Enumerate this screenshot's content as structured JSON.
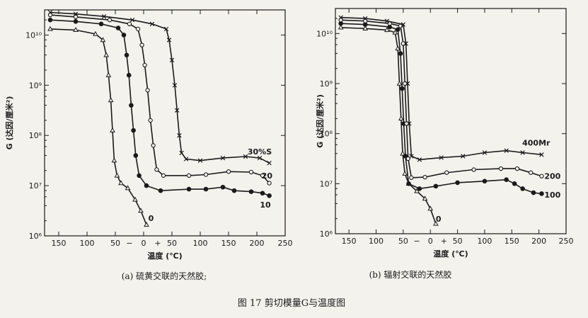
{
  "figure_caption": "图 17   剪切模量G与温度图",
  "chart_data": [
    {
      "type": "line",
      "caption": "(a)  硫黄交联的天然胶;",
      "xlabel": "温度 (℃)",
      "ylabel": "G (达因/厘米²)",
      "y_scale": "log",
      "xlim": [
        -175,
        250
      ],
      "ylim": [
        6,
        10.5
      ],
      "x_ticks": [
        {
          "v": -150,
          "label": "150"
        },
        {
          "v": -100,
          "label": "100"
        },
        {
          "v": -50,
          "label": "50"
        },
        {
          "v": 0,
          "label": "0"
        },
        {
          "v": 50,
          "label": "50"
        },
        {
          "v": 100,
          "label": "100"
        },
        {
          "v": 150,
          "label": "150"
        },
        {
          "v": 200,
          "label": "200"
        },
        {
          "v": 250,
          "label": "250"
        }
      ],
      "x_sign_labels": [
        {
          "v": -25,
          "label": "−"
        },
        {
          "v": 25,
          "label": "+"
        }
      ],
      "y_ticks": [
        {
          "v": 10,
          "label": "10¹⁰"
        },
        {
          "v": 9,
          "label": "10⁹"
        },
        {
          "v": 8,
          "label": "10⁸"
        },
        {
          "v": 7,
          "label": "10⁷"
        },
        {
          "v": 6,
          "label": "10⁶"
        }
      ],
      "series": [
        {
          "name": "0",
          "marker": "triangle",
          "points": [
            [
              -165,
              10.12
            ],
            [
              -120,
              10.1
            ],
            [
              -85,
              10.02
            ],
            [
              -72,
              9.9
            ],
            [
              -66,
              9.6
            ],
            [
              -62,
              9.2
            ],
            [
              -58,
              8.7
            ],
            [
              -55,
              8.1
            ],
            [
              -52,
              7.5
            ],
            [
              -47,
              7.2
            ],
            [
              -40,
              7.05
            ],
            [
              -28,
              6.95
            ],
            [
              -15,
              6.72
            ],
            [
              -5,
              6.5
            ],
            [
              5,
              6.22
            ]
          ]
        },
        {
          "name": "10",
          "marker": "filled-circle",
          "points": [
            [
              -165,
              10.3
            ],
            [
              -120,
              10.27
            ],
            [
              -75,
              10.22
            ],
            [
              -45,
              10.14
            ],
            [
              -35,
              10.0
            ],
            [
              -30,
              9.6
            ],
            [
              -26,
              9.2
            ],
            [
              -22,
              8.6
            ],
            [
              -18,
              8.1
            ],
            [
              -14,
              7.6
            ],
            [
              -8,
              7.2
            ],
            [
              5,
              7.0
            ],
            [
              30,
              6.9
            ],
            [
              80,
              6.93
            ],
            [
              110,
              6.93
            ],
            [
              140,
              6.97
            ],
            [
              160,
              6.9
            ],
            [
              190,
              6.88
            ],
            [
              210,
              6.85
            ],
            [
              222,
              6.8
            ]
          ]
        },
        {
          "name": "20",
          "marker": "open-circle",
          "points": [
            [
              -165,
              10.4
            ],
            [
              -120,
              10.36
            ],
            [
              -60,
              10.3
            ],
            [
              -25,
              10.22
            ],
            [
              -10,
              10.12
            ],
            [
              -3,
              9.8
            ],
            [
              2,
              9.4
            ],
            [
              7,
              8.9
            ],
            [
              12,
              8.3
            ],
            [
              17,
              7.8
            ],
            [
              23,
              7.32
            ],
            [
              35,
              7.2
            ],
            [
              80,
              7.2
            ],
            [
              110,
              7.22
            ],
            [
              150,
              7.28
            ],
            [
              190,
              7.27
            ],
            [
              210,
              7.2
            ],
            [
              222,
              7.05
            ]
          ]
        },
        {
          "name": "30%S",
          "marker": "cross",
          "points": [
            [
              -165,
              10.45
            ],
            [
              -120,
              10.42
            ],
            [
              -70,
              10.37
            ],
            [
              -20,
              10.3
            ],
            [
              15,
              10.22
            ],
            [
              40,
              10.12
            ],
            [
              45,
              9.9
            ],
            [
              50,
              9.5
            ],
            [
              55,
              9.0
            ],
            [
              59,
              8.5
            ],
            [
              63,
              8.0
            ],
            [
              67,
              7.65
            ],
            [
              75,
              7.53
            ],
            [
              100,
              7.5
            ],
            [
              140,
              7.55
            ],
            [
              180,
              7.58
            ],
            [
              205,
              7.55
            ],
            [
              222,
              7.45
            ]
          ]
        }
      ],
      "series_labels": [
        {
          "series": "30%S",
          "text": "30%S",
          "x": 205,
          "y": 7.68
        },
        {
          "series": "20",
          "text": "20",
          "x": 218,
          "y": 7.2
        },
        {
          "series": "10",
          "text": "10",
          "x": 215,
          "y": 6.62
        },
        {
          "series": "0",
          "text": "0",
          "x": 13,
          "y": 6.35
        }
      ]
    },
    {
      "type": "line",
      "caption": "(b)  辐射交联的天然胶",
      "xlabel": "温度 (℃)",
      "ylabel": "G (达因/厘米²)",
      "y_scale": "log",
      "xlim": [
        -175,
        250
      ],
      "ylim": [
        6,
        10.5
      ],
      "x_ticks": [
        {
          "v": -150,
          "label": "150"
        },
        {
          "v": -100,
          "label": "100"
        },
        {
          "v": -50,
          "label": "50"
        },
        {
          "v": 0,
          "label": "0"
        },
        {
          "v": 50,
          "label": "50"
        },
        {
          "v": 100,
          "label": "100"
        },
        {
          "v": 150,
          "label": "150"
        },
        {
          "v": 200,
          "label": "200"
        },
        {
          "v": 250,
          "label": "250"
        }
      ],
      "x_sign_labels": [
        {
          "v": -25,
          "label": "−"
        },
        {
          "v": 25,
          "label": "+"
        }
      ],
      "y_ticks": [
        {
          "v": 10,
          "label": "10¹⁰"
        },
        {
          "v": 9,
          "label": "10⁹"
        },
        {
          "v": 8,
          "label": "10⁸"
        },
        {
          "v": 7,
          "label": "10⁷"
        },
        {
          "v": 6,
          "label": "10⁶"
        }
      ],
      "series": [
        {
          "name": "0",
          "marker": "triangle",
          "points": [
            [
              -165,
              10.12
            ],
            [
              -120,
              10.1
            ],
            [
              -80,
              10.07
            ],
            [
              -65,
              10.02
            ],
            [
              -60,
              9.7
            ],
            [
              -57,
              9.0
            ],
            [
              -54,
              8.3
            ],
            [
              -51,
              7.6
            ],
            [
              -47,
              7.2
            ],
            [
              -40,
              7.0
            ],
            [
              -25,
              6.85
            ],
            [
              -10,
              6.7
            ],
            [
              0,
              6.5
            ],
            [
              10,
              6.2
            ]
          ]
        },
        {
          "name": "100",
          "marker": "filled-circle",
          "points": [
            [
              -165,
              10.2
            ],
            [
              -120,
              10.18
            ],
            [
              -75,
              10.13
            ],
            [
              -60,
              10.08
            ],
            [
              -55,
              9.6
            ],
            [
              -52,
              8.9
            ],
            [
              -49,
              8.2
            ],
            [
              -46,
              7.55
            ],
            [
              -40,
              7.0
            ],
            [
              -20,
              6.9
            ],
            [
              10,
              6.95
            ],
            [
              50,
              7.02
            ],
            [
              100,
              7.05
            ],
            [
              140,
              7.08
            ],
            [
              155,
              7.0
            ],
            [
              170,
              6.9
            ],
            [
              190,
              6.82
            ],
            [
              205,
              6.8
            ]
          ]
        },
        {
          "name": "200",
          "marker": "open-circle",
          "points": [
            [
              -165,
              10.27
            ],
            [
              -120,
              10.25
            ],
            [
              -75,
              10.2
            ],
            [
              -55,
              10.15
            ],
            [
              -50,
              9.8
            ],
            [
              -47,
              9.0
            ],
            [
              -44,
              8.2
            ],
            [
              -41,
              7.5
            ],
            [
              -35,
              7.12
            ],
            [
              -10,
              7.13
            ],
            [
              30,
              7.22
            ],
            [
              80,
              7.28
            ],
            [
              130,
              7.3
            ],
            [
              160,
              7.3
            ],
            [
              185,
              7.22
            ],
            [
              205,
              7.15
            ]
          ]
        },
        {
          "name": "400Mr",
          "marker": "cross",
          "points": [
            [
              -165,
              10.32
            ],
            [
              -120,
              10.3
            ],
            [
              -80,
              10.25
            ],
            [
              -50,
              10.18
            ],
            [
              -45,
              9.8
            ],
            [
              -42,
              9.0
            ],
            [
              -39,
              8.2
            ],
            [
              -35,
              7.55
            ],
            [
              -20,
              7.48
            ],
            [
              20,
              7.52
            ],
            [
              60,
              7.55
            ],
            [
              100,
              7.62
            ],
            [
              140,
              7.66
            ],
            [
              170,
              7.62
            ],
            [
              205,
              7.58
            ]
          ]
        }
      ],
      "series_labels": [
        {
          "series": "400Mr",
          "text": "400Mr",
          "x": 195,
          "y": 7.82
        },
        {
          "series": "200",
          "text": "200",
          "x": 225,
          "y": 7.15
        },
        {
          "series": "100",
          "text": "100",
          "x": 225,
          "y": 6.78
        },
        {
          "series": "0",
          "text": "0",
          "x": 15,
          "y": 6.3
        }
      ]
    }
  ]
}
